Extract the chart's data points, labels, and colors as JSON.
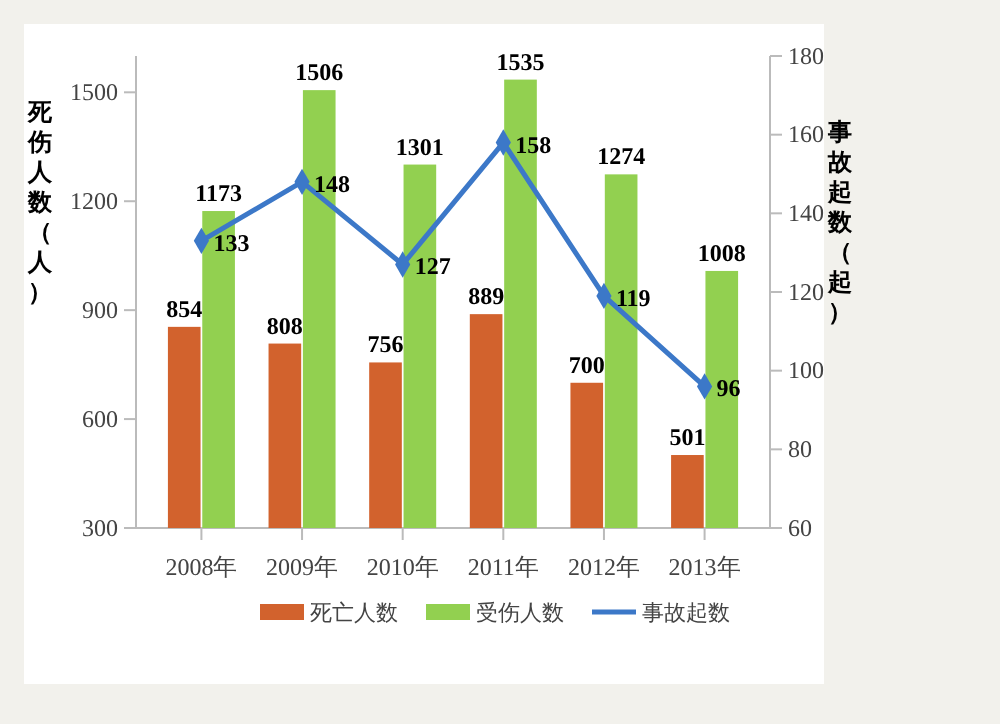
{
  "chart_data": {
    "type": "bar",
    "categories": [
      "2008年",
      "2009年",
      "2010年",
      "2011年",
      "2012年",
      "2013年"
    ],
    "ylabel": "死伤人数（人）",
    "y2label": "事故起数（起）",
    "series": [
      {
        "name": "死亡人数",
        "color": "#d2622d",
        "values": [
          854,
          808,
          756,
          889,
          700,
          501
        ]
      },
      {
        "name": "受伤人数",
        "color": "#92d050",
        "values": [
          1173,
          1506,
          1301,
          1535,
          1274,
          1008
        ]
      },
      {
        "name": "事故起数",
        "type": "line",
        "axis": "y2",
        "color": "#3c78c8",
        "values": [
          133,
          148,
          127,
          158,
          119,
          96
        ]
      }
    ],
    "ylim": [
      300,
      1600
    ],
    "yticks": [
      300,
      600,
      900,
      1200,
      1500
    ],
    "y2lim": [
      60,
      180
    ],
    "y2ticks": [
      60,
      80,
      100,
      120,
      140,
      160,
      180
    ],
    "data_labels": true,
    "marker": "diamond",
    "legend": "bottom",
    "grid": false
  }
}
